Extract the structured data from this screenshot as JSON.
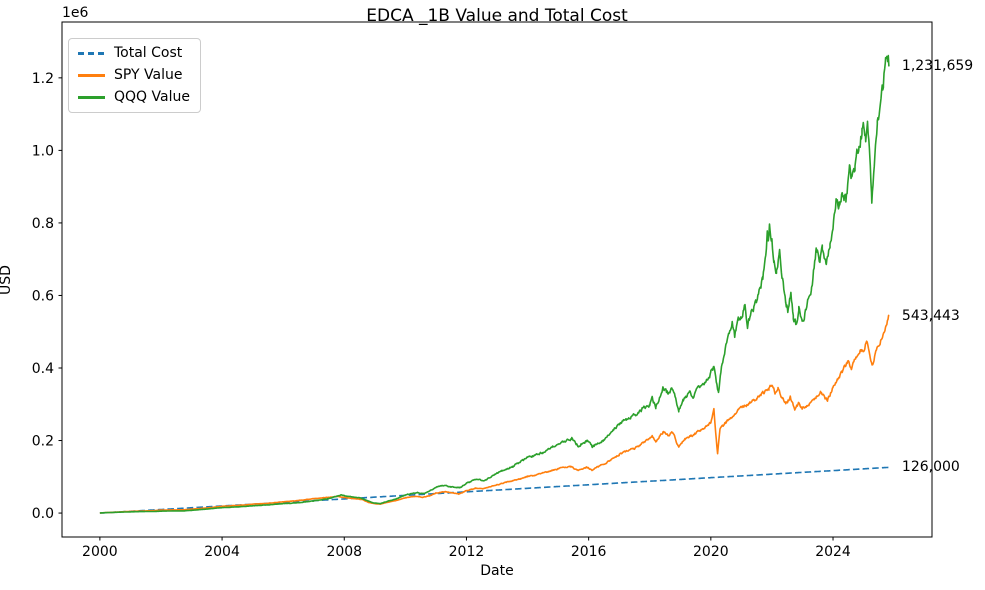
{
  "figure": {
    "background": "#ffffff",
    "text_color": "#000000",
    "spine_color": "#000000"
  },
  "chart_data": {
    "type": "line",
    "title": "EDCA _1B Value and Total Cost",
    "xlabel": "Date",
    "ylabel": "USD",
    "y_offset_text": "1e6",
    "grid": false,
    "legend_position": "upper left",
    "axis": {
      "xmin": 1998.76,
      "xmax": 2027.24,
      "ymin": -66000,
      "ymax": 1354000
    },
    "x_ticks": [
      2000,
      2004,
      2008,
      2012,
      2016,
      2020,
      2024
    ],
    "y_ticks": [
      0,
      200000,
      400000,
      600000,
      800000,
      1000000,
      1200000
    ],
    "y_tick_labels": [
      "0.0",
      "0.2",
      "0.4",
      "0.6",
      "0.8",
      "1.0",
      "1.2"
    ],
    "series": [
      {
        "name": "Total Cost",
        "color": "#1f77b4",
        "dash": true,
        "noise": 0,
        "end_label": "126,000",
        "end_value": 126000,
        "points": [
          [
            2000.0,
            0
          ],
          [
            2025.83,
            126000
          ]
        ]
      },
      {
        "name": "SPY Value",
        "color": "#ff7f0e",
        "dash": false,
        "noise": 0.012,
        "end_label": "543,443",
        "end_value": 543443,
        "points": [
          [
            2000.0,
            400
          ],
          [
            2000.3,
            1600
          ],
          [
            2000.6,
            2900
          ],
          [
            2001.0,
            4600
          ],
          [
            2001.4,
            5800
          ],
          [
            2001.75,
            6500
          ],
          [
            2002.0,
            8200
          ],
          [
            2002.4,
            8800
          ],
          [
            2002.75,
            9000
          ],
          [
            2003.0,
            10800
          ],
          [
            2003.5,
            14000
          ],
          [
            2004.0,
            18500
          ],
          [
            2004.6,
            21500
          ],
          [
            2005.0,
            24500
          ],
          [
            2005.5,
            27000
          ],
          [
            2006.0,
            31000
          ],
          [
            2006.5,
            34500
          ],
          [
            2007.0,
            39500
          ],
          [
            2007.5,
            43500
          ],
          [
            2007.78,
            46000
          ],
          [
            2008.0,
            43000
          ],
          [
            2008.3,
            40000
          ],
          [
            2008.6,
            37000
          ],
          [
            2008.8,
            29000
          ],
          [
            2009.0,
            26000
          ],
          [
            2009.17,
            24500
          ],
          [
            2009.4,
            29500
          ],
          [
            2009.7,
            35000
          ],
          [
            2010.0,
            42000
          ],
          [
            2010.35,
            46000
          ],
          [
            2010.55,
            43000
          ],
          [
            2010.8,
            48000
          ],
          [
            2011.0,
            55000
          ],
          [
            2011.3,
            59000
          ],
          [
            2011.55,
            56000
          ],
          [
            2011.75,
            52000
          ],
          [
            2012.0,
            62000
          ],
          [
            2012.3,
            68000
          ],
          [
            2012.5,
            66000
          ],
          [
            2013.0,
            78000
          ],
          [
            2013.5,
            89000
          ],
          [
            2014.0,
            100000
          ],
          [
            2014.5,
            110000
          ],
          [
            2015.0,
            122000
          ],
          [
            2015.4,
            128000
          ],
          [
            2015.65,
            117000
          ],
          [
            2015.95,
            126000
          ],
          [
            2016.12,
            118000
          ],
          [
            2016.3,
            128000
          ],
          [
            2016.5,
            134000
          ],
          [
            2017.0,
            162000
          ],
          [
            2017.5,
            178000
          ],
          [
            2018.0,
            205000
          ],
          [
            2018.08,
            212000
          ],
          [
            2018.2,
            198000
          ],
          [
            2018.43,
            223000
          ],
          [
            2018.6,
            215000
          ],
          [
            2018.75,
            222000
          ],
          [
            2018.95,
            182000
          ],
          [
            2019.15,
            205000
          ],
          [
            2019.4,
            215000
          ],
          [
            2019.6,
            225000
          ],
          [
            2019.8,
            235000
          ],
          [
            2020.0,
            250000
          ],
          [
            2020.1,
            285000
          ],
          [
            2020.22,
            165000
          ],
          [
            2020.3,
            230000
          ],
          [
            2020.5,
            250000
          ],
          [
            2020.7,
            265000
          ],
          [
            2020.9,
            285000
          ],
          [
            2021.1,
            295000
          ],
          [
            2021.3,
            305000
          ],
          [
            2021.5,
            315000
          ],
          [
            2021.7,
            330000
          ],
          [
            2021.9,
            342000
          ],
          [
            2022.0,
            358000
          ],
          [
            2022.1,
            332000
          ],
          [
            2022.2,
            344000
          ],
          [
            2022.35,
            315000
          ],
          [
            2022.45,
            300000
          ],
          [
            2022.6,
            318000
          ],
          [
            2022.75,
            284000
          ],
          [
            2022.87,
            302000
          ],
          [
            2023.0,
            288000
          ],
          [
            2023.15,
            298000
          ],
          [
            2023.3,
            305000
          ],
          [
            2023.45,
            322000
          ],
          [
            2023.6,
            333000
          ],
          [
            2023.82,
            308000
          ],
          [
            2024.0,
            350000
          ],
          [
            2024.15,
            370000
          ],
          [
            2024.3,
            390000
          ],
          [
            2024.5,
            420000
          ],
          [
            2024.6,
            398000
          ],
          [
            2024.75,
            430000
          ],
          [
            2024.9,
            450000
          ],
          [
            2025.0,
            445000
          ],
          [
            2025.1,
            475000
          ],
          [
            2025.2,
            440000
          ],
          [
            2025.28,
            402000
          ],
          [
            2025.38,
            435000
          ],
          [
            2025.5,
            465000
          ],
          [
            2025.6,
            487000
          ],
          [
            2025.7,
            505000
          ],
          [
            2025.78,
            528000
          ],
          [
            2025.83,
            543443
          ]
        ]
      },
      {
        "name": "QQQ Value",
        "color": "#2ca02c",
        "dash": false,
        "noise": 0.015,
        "end_label": "1,231,659",
        "end_value": 1231659,
        "points": [
          [
            2000.0,
            400
          ],
          [
            2000.3,
            1400
          ],
          [
            2000.6,
            2300
          ],
          [
            2001.0,
            3300
          ],
          [
            2001.4,
            4100
          ],
          [
            2001.75,
            4300
          ],
          [
            2002.0,
            5300
          ],
          [
            2002.4,
            5900
          ],
          [
            2002.75,
            6000
          ],
          [
            2003.0,
            7500
          ],
          [
            2003.5,
            11000
          ],
          [
            2004.0,
            15000
          ],
          [
            2004.6,
            17500
          ],
          [
            2005.0,
            20000
          ],
          [
            2005.5,
            22500
          ],
          [
            2006.0,
            26000
          ],
          [
            2006.5,
            28500
          ],
          [
            2007.0,
            33500
          ],
          [
            2007.5,
            40000
          ],
          [
            2007.9,
            50000
          ],
          [
            2008.2,
            45000
          ],
          [
            2008.5,
            42000
          ],
          [
            2008.7,
            36000
          ],
          [
            2008.95,
            28000
          ],
          [
            2009.17,
            26000
          ],
          [
            2009.4,
            32000
          ],
          [
            2009.7,
            39000
          ],
          [
            2010.0,
            50000
          ],
          [
            2010.4,
            56000
          ],
          [
            2010.6,
            53000
          ],
          [
            2011.0,
            70000
          ],
          [
            2011.2,
            76000
          ],
          [
            2011.5,
            72000
          ],
          [
            2011.8,
            70000
          ],
          [
            2012.0,
            82000
          ],
          [
            2012.3,
            92000
          ],
          [
            2012.6,
            90000
          ],
          [
            2013.0,
            110000
          ],
          [
            2013.5,
            128000
          ],
          [
            2014.0,
            152000
          ],
          [
            2014.5,
            168000
          ],
          [
            2015.0,
            190000
          ],
          [
            2015.45,
            207000
          ],
          [
            2015.65,
            185000
          ],
          [
            2015.95,
            200000
          ],
          [
            2016.12,
            182000
          ],
          [
            2016.3,
            192000
          ],
          [
            2016.5,
            200000
          ],
          [
            2017.0,
            248000
          ],
          [
            2017.25,
            258000
          ],
          [
            2017.5,
            270000
          ],
          [
            2017.75,
            285000
          ],
          [
            2018.0,
            300000
          ],
          [
            2018.08,
            315000
          ],
          [
            2018.2,
            292000
          ],
          [
            2018.43,
            348000
          ],
          [
            2018.6,
            330000
          ],
          [
            2018.75,
            345000
          ],
          [
            2018.95,
            284000
          ],
          [
            2019.1,
            310000
          ],
          [
            2019.3,
            330000
          ],
          [
            2019.45,
            320000
          ],
          [
            2019.6,
            345000
          ],
          [
            2019.8,
            360000
          ],
          [
            2020.0,
            385000
          ],
          [
            2020.1,
            400000
          ],
          [
            2020.25,
            330000
          ],
          [
            2020.35,
            400000
          ],
          [
            2020.5,
            465000
          ],
          [
            2020.6,
            500000
          ],
          [
            2020.7,
            535000
          ],
          [
            2020.78,
            490000
          ],
          [
            2020.9,
            530000
          ],
          [
            2021.0,
            545000
          ],
          [
            2021.12,
            570000
          ],
          [
            2021.2,
            520000
          ],
          [
            2021.35,
            560000
          ],
          [
            2021.5,
            580000
          ],
          [
            2021.6,
            610000
          ],
          [
            2021.7,
            645000
          ],
          [
            2021.8,
            700000
          ],
          [
            2021.85,
            770000
          ],
          [
            2021.88,
            745000
          ],
          [
            2021.92,
            788000
          ],
          [
            2022.0,
            755000
          ],
          [
            2022.07,
            690000
          ],
          [
            2022.15,
            660000
          ],
          [
            2022.25,
            710000
          ],
          [
            2022.35,
            645000
          ],
          [
            2022.45,
            585000
          ],
          [
            2022.52,
            560000
          ],
          [
            2022.62,
            615000
          ],
          [
            2022.7,
            540000
          ],
          [
            2022.8,
            519000
          ],
          [
            2022.88,
            565000
          ],
          [
            2022.95,
            530000
          ],
          [
            2023.02,
            520000
          ],
          [
            2023.15,
            575000
          ],
          [
            2023.3,
            620000
          ],
          [
            2023.45,
            730000
          ],
          [
            2023.55,
            700000
          ],
          [
            2023.65,
            725000
          ],
          [
            2023.78,
            688000
          ],
          [
            2023.9,
            740000
          ],
          [
            2024.0,
            800000
          ],
          [
            2024.1,
            870000
          ],
          [
            2024.2,
            845000
          ],
          [
            2024.3,
            885000
          ],
          [
            2024.42,
            860000
          ],
          [
            2024.55,
            965000
          ],
          [
            2024.62,
            920000
          ],
          [
            2024.72,
            960000
          ],
          [
            2024.85,
            1015000
          ],
          [
            2024.95,
            1050000
          ],
          [
            2025.02,
            1065000
          ],
          [
            2025.07,
            1030000
          ],
          [
            2025.13,
            1078000
          ],
          [
            2025.2,
            985000
          ],
          [
            2025.27,
            855000
          ],
          [
            2025.35,
            975000
          ],
          [
            2025.45,
            1060000
          ],
          [
            2025.55,
            1120000
          ],
          [
            2025.65,
            1185000
          ],
          [
            2025.72,
            1245000
          ],
          [
            2025.76,
            1262000
          ],
          [
            2025.79,
            1225000
          ],
          [
            2025.81,
            1268000
          ],
          [
            2025.83,
            1231659
          ]
        ]
      }
    ]
  }
}
